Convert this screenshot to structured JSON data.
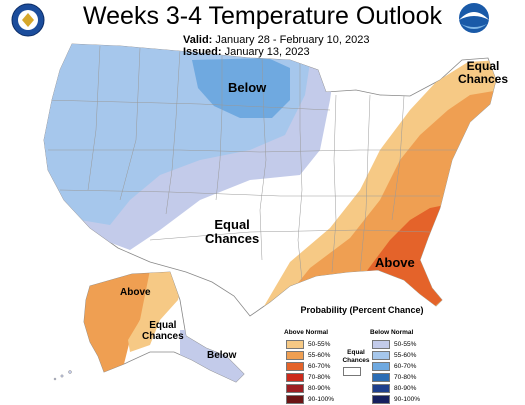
{
  "header": {
    "title": "Weeks 3-4 Temperature Outlook",
    "valid_label": "Valid:",
    "valid_value": "January 28 - February 10, 2023",
    "issued_label": "Issued:",
    "issued_value": "January 13, 2023"
  },
  "map": {
    "labels": {
      "below_conus": "Below",
      "equal_center_line1": "Equal",
      "equal_center_line2": "Chances",
      "equal_ne_line1": "Equal",
      "equal_ne_line2": "Chances",
      "above_se": "Above",
      "above_ak": "Above",
      "equal_ak_line1": "Equal",
      "equal_ak_line2": "Chances",
      "below_ak": "Below"
    }
  },
  "legend": {
    "title": "Probability (Percent Chance)",
    "above_header": "Above Normal",
    "below_header": "Below Normal",
    "equal_line1": "Equal",
    "equal_line2": "Chances",
    "above_rows": [
      {
        "label": "50-55%",
        "color": "#f6c985"
      },
      {
        "label": "55-60%",
        "color": "#ef9f52"
      },
      {
        "label": "60-70%",
        "color": "#e4632a"
      },
      {
        "label": "70-80%",
        "color": "#cc2a1c"
      },
      {
        "label": "80-90%",
        "color": "#9d1e22"
      },
      {
        "label": "90-100%",
        "color": "#6b1414"
      }
    ],
    "below_rows": [
      {
        "label": "50-55%",
        "color": "#c3cbea"
      },
      {
        "label": "55-60%",
        "color": "#a6c7ec"
      },
      {
        "label": "60-70%",
        "color": "#6fa9e0"
      },
      {
        "label": "70-80%",
        "color": "#2c6db4"
      },
      {
        "label": "80-90%",
        "color": "#1e3f8c"
      },
      {
        "label": "90-100%",
        "color": "#15205e"
      }
    ]
  },
  "colors": {
    "land_equal": "#ffffff",
    "below_light": "#c3cbea",
    "below_mid": "#a6c7ec",
    "below_strong": "#6fa9e0",
    "above_light": "#f6c985",
    "above_mid": "#ef9f52",
    "above_strong": "#e4632a",
    "border": "#888888"
  }
}
